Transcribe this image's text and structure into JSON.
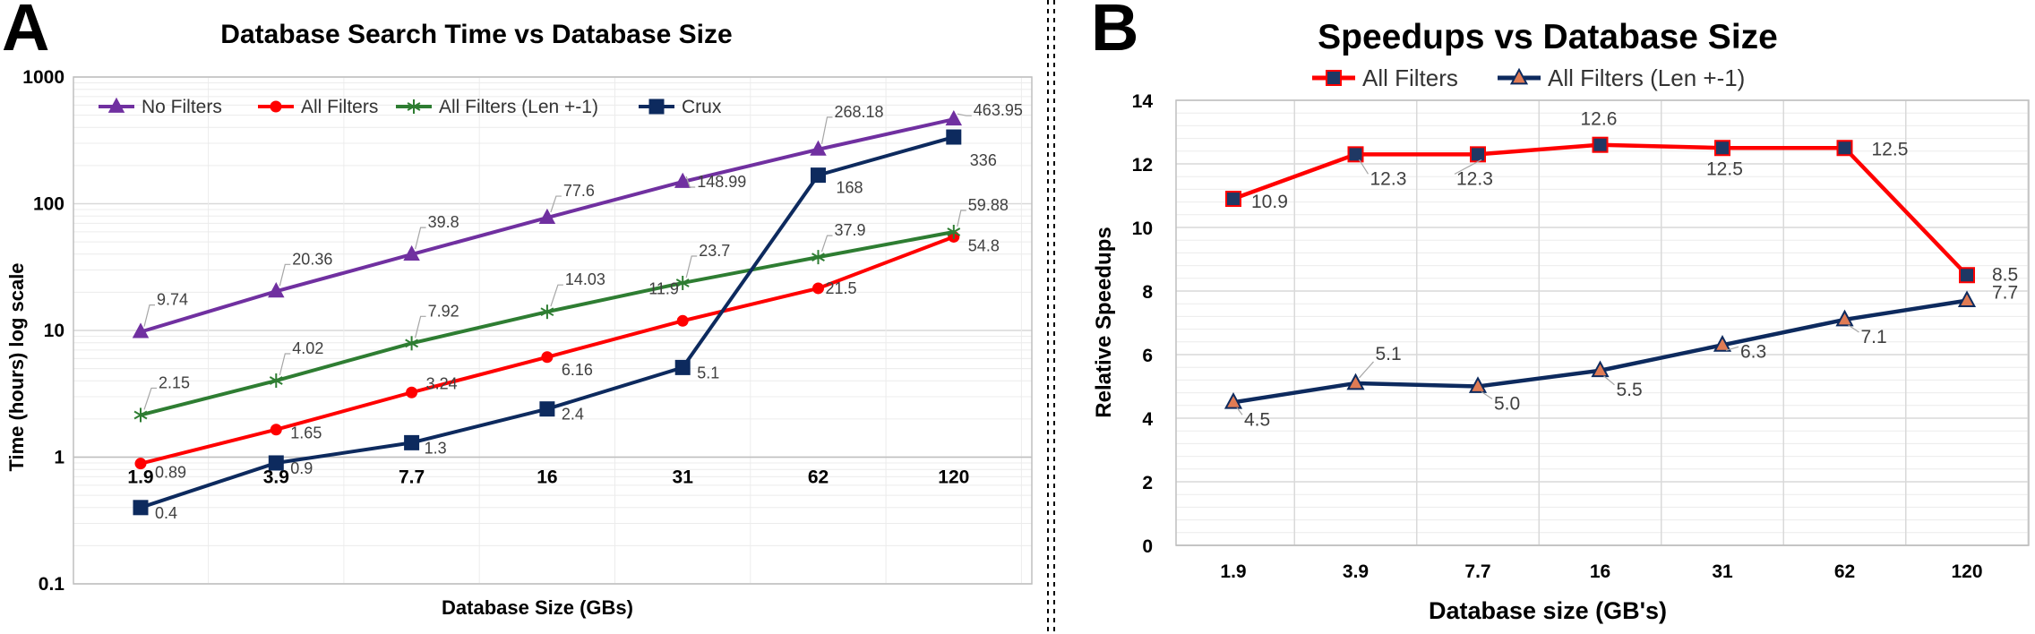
{
  "chart_data": [
    {
      "panel_label": "A",
      "type": "line",
      "title": "Database Search Time vs Database Size",
      "xlabel": "Database Size (GBs)",
      "ylabel": "Time (hours) log scale",
      "y_scale": "log",
      "ylim": [
        0.1,
        1000
      ],
      "y_ticks": [
        "0.1",
        "1",
        "10",
        "100",
        "1000"
      ],
      "grid": true,
      "legend_position": "top-left",
      "categories": [
        "1.9",
        "3.9",
        "7.7",
        "16",
        "31",
        "62",
        "120"
      ],
      "series": [
        {
          "name": "No Filters",
          "color": "#7030a0",
          "marker": "triangle",
          "values": [
            9.74,
            20.36,
            39.8,
            77.6,
            148.99,
            268.18,
            463.95
          ],
          "labels": [
            "9.74",
            "20.36",
            "39.8",
            "77.6",
            "148.99",
            "268.18",
            "463.95"
          ]
        },
        {
          "name": "All Filters",
          "color": "#ff0000",
          "marker": "circle",
          "values": [
            0.89,
            1.65,
            3.24,
            6.16,
            11.9,
            21.5,
            54.8
          ],
          "labels": [
            "0.89",
            "1.65",
            "3.24",
            "6.16",
            "11.9",
            "21.5",
            "54.8"
          ]
        },
        {
          "name": "All Filters (Len +-1)",
          "color": "#2e7d32",
          "marker": "star",
          "values": [
            2.15,
            4.02,
            7.92,
            14.03,
            23.7,
            37.9,
            59.88
          ],
          "labels": [
            "2.15",
            "4.02",
            "7.92",
            "14.03",
            "23.7",
            "37.9",
            "59.88"
          ]
        },
        {
          "name": "Crux",
          "color": "#0d2a5e",
          "marker": "square",
          "values": [
            0.4,
            0.9,
            1.3,
            2.4,
            5.1,
            168,
            336
          ],
          "labels": [
            "0.4",
            "0.9",
            "1.3",
            "2.4",
            "5.1",
            "168",
            "336"
          ]
        }
      ]
    },
    {
      "panel_label": "B",
      "type": "line",
      "title": "Speedups vs Database Size",
      "xlabel": "Database size (GB's)",
      "ylabel": "Relative Speedups",
      "y_scale": "linear",
      "ylim": [
        0,
        14
      ],
      "y_ticks": [
        "0",
        "2",
        "4",
        "6",
        "8",
        "10",
        "12",
        "14"
      ],
      "grid": true,
      "legend_position": "top",
      "categories": [
        "1.9",
        "3.9",
        "7.7",
        "16",
        "31",
        "62",
        "120"
      ],
      "series": [
        {
          "name": "All Filters",
          "color": "#ff0000",
          "marker_fill": "#1f3864",
          "marker": "square",
          "values": [
            10.9,
            12.3,
            12.3,
            12.6,
            12.5,
            12.5,
            8.5
          ],
          "labels": [
            "10.9",
            "12.3",
            "12.3",
            "12.6",
            "12.5",
            "12.5",
            "8.5"
          ]
        },
        {
          "name": "All Filters (Len +-1)",
          "color": "#0d2a5e",
          "marker_fill": "#e07b54",
          "marker": "triangle",
          "values": [
            4.5,
            5.1,
            5.0,
            5.5,
            6.3,
            7.1,
            7.7
          ],
          "labels": [
            "4.5",
            "5.1",
            "5.0",
            "5.5",
            "6.3",
            "7.1",
            "7.7"
          ]
        }
      ]
    }
  ]
}
